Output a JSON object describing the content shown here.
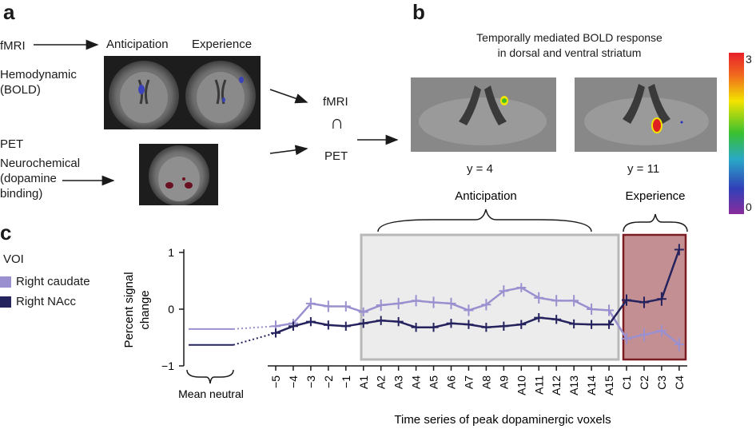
{
  "panel_a": {
    "letter": "a",
    "fmri_label": "fMRI",
    "anticipation_label": "Anticipation",
    "experience_label": "Experience",
    "hemodynamic_label": "Hemodynamic",
    "bold_label": "(BOLD)",
    "pet_label": "PET",
    "neurochemical_label": "Neurochemical",
    "dopamine_label": "(dopamine",
    "binding_label": "binding)",
    "intersect_top": "fMRI",
    "intersect_symbol": "∩",
    "intersect_bottom": "PET"
  },
  "panel_b": {
    "letter": "b",
    "title_line1": "Temporally mediated BOLD response",
    "title_line2": "in dorsal and ventral striatum",
    "slice1_label": "y = 4",
    "slice2_label": "y = 11",
    "colorbar_max": "3",
    "colorbar_min": "0"
  },
  "panel_c": {
    "letter": "c",
    "voi_label": "VOI",
    "legend": [
      {
        "name": "Right caudate",
        "color": "#9b90cf"
      },
      {
        "name": "Right NAcc",
        "color": "#25235e"
      }
    ],
    "anticipation_bracket_label": "Anticipation",
    "experience_bracket_label": "Experience",
    "mean_neutral_label": "Mean neutral",
    "xlabel": "Time series of peak dopaminergic voxels",
    "ylabel_line1": "Percent signal",
    "ylabel_line2": "change"
  },
  "chart_data": {
    "type": "line",
    "title": "",
    "xlabel": "Time series of peak dopaminergic voxels",
    "ylabel": "Percent signal change",
    "ylim": [
      -1,
      1
    ],
    "yticks": [
      "1",
      "0",
      "−1"
    ],
    "categories": [
      "−5",
      "−4",
      "−3",
      "−2",
      "−1",
      "A1",
      "A2",
      "A3",
      "A4",
      "A5",
      "A6",
      "A7",
      "A8",
      "A9",
      "A10",
      "A11",
      "A12",
      "A13",
      "A14",
      "A15",
      "C1",
      "C2",
      "C3",
      "C4"
    ],
    "mean_neutral": {
      "Right caudate": -0.35,
      "Right NAcc": -0.63
    },
    "series": [
      {
        "name": "Right caudate",
        "color": "#9b90cf",
        "values": [
          -0.3,
          -0.25,
          0.1,
          0.05,
          0.05,
          -0.05,
          0.07,
          0.1,
          0.15,
          0.12,
          0.1,
          -0.02,
          0.08,
          0.32,
          0.38,
          0.2,
          0.15,
          0.15,
          0.0,
          -0.02,
          -0.52,
          -0.45,
          -0.38,
          -0.62
        ],
        "errors": [
          0.1,
          0.08,
          0.1,
          0.1,
          0.09,
          0.08,
          0.1,
          0.1,
          0.1,
          0.1,
          0.1,
          0.1,
          0.1,
          0.1,
          0.08,
          0.1,
          0.1,
          0.1,
          0.1,
          0.1,
          0.1,
          0.12,
          0.1,
          0.12
        ]
      },
      {
        "name": "Right NAcc",
        "color": "#25235e",
        "values": [
          -0.42,
          -0.3,
          -0.22,
          -0.28,
          -0.3,
          -0.25,
          -0.2,
          -0.22,
          -0.32,
          -0.32,
          -0.25,
          -0.27,
          -0.32,
          -0.3,
          -0.27,
          -0.15,
          -0.18,
          -0.26,
          -0.27,
          -0.27,
          0.16,
          0.12,
          0.18,
          1.05
        ],
        "errors": [
          0.08,
          0.08,
          0.08,
          0.08,
          0.08,
          0.08,
          0.08,
          0.08,
          0.08,
          0.08,
          0.08,
          0.08,
          0.08,
          0.08,
          0.08,
          0.08,
          0.08,
          0.08,
          0.08,
          0.08,
          0.1,
          0.1,
          0.12,
          0.1
        ]
      }
    ]
  },
  "colors": {
    "anticipation_box_fill": "#ececec",
    "anticipation_box_stroke": "#b8b8b8",
    "experience_box_fill": "#c48f93",
    "experience_box_stroke": "#7a1c22"
  }
}
